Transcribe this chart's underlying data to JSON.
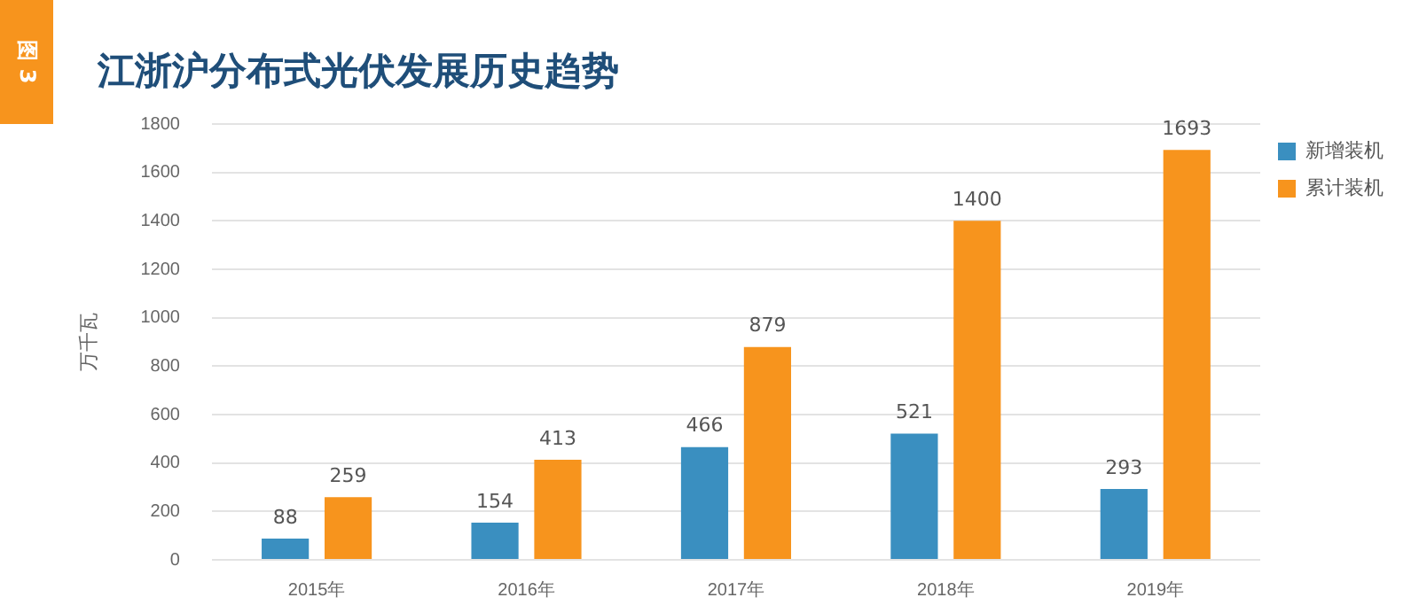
{
  "chart_data": {
    "type": "bar",
    "title": "江浙沪分布式光伏发展历史趋势",
    "ylabel": "万千瓦",
    "annotations": [
      "图 3"
    ],
    "categories": [
      "2015年",
      "2016年",
      "2017年",
      "2018年",
      "2019年"
    ],
    "series": [
      {
        "name": "新增装机",
        "color": "#3a8fc0",
        "values": [
          88,
          154,
          466,
          521,
          293
        ]
      },
      {
        "name": "累计装机",
        "color": "#f7941d",
        "values": [
          259,
          413,
          879,
          1400,
          1693
        ]
      }
    ],
    "ylim": [
      0,
      1800
    ],
    "yticks": [
      0,
      200,
      400,
      600,
      800,
      1000,
      1200,
      1400,
      1600,
      1800
    ],
    "grid": "y",
    "legend": "top right",
    "data_labels": true
  }
}
